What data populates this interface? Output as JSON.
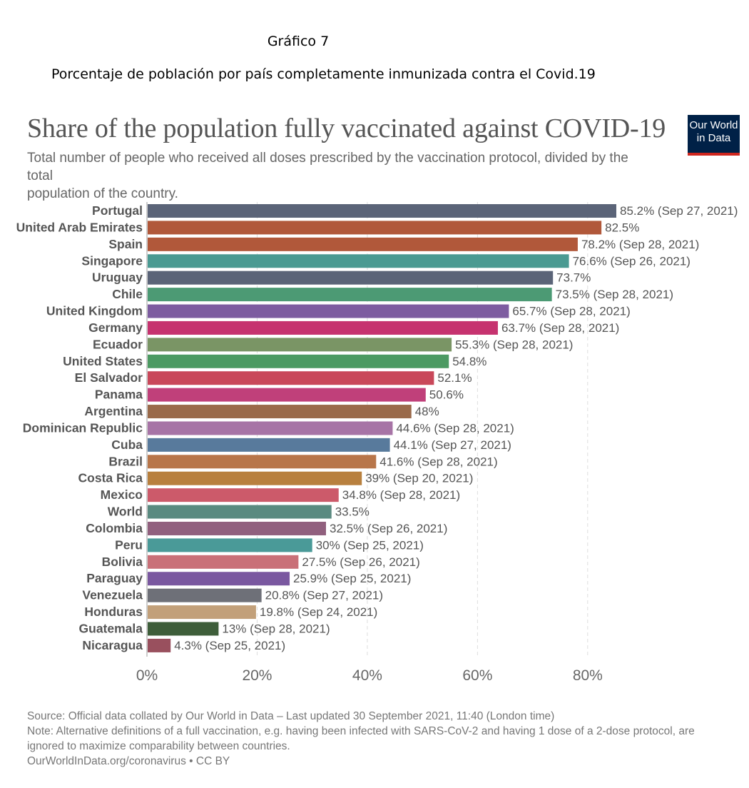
{
  "caption": {
    "number": "Gráfico 7",
    "title": "Porcentaje de población por país completamente inmunizada contra el Covid.19"
  },
  "logo": {
    "line1": "Our World",
    "line2": "in Data",
    "bg_color": "#002147",
    "accent_color": "#ce261e"
  },
  "footer": {
    "source": "Source: Official data collated by Our World in Data – Last updated 30 September 2021, 11:40 (London time)",
    "note_line1": "Note: Alternative definitions of a full vaccination, e.g. having been infected with SARS-CoV-2 and having 1 dose of a 2-dose protocol, are",
    "note_line2": "ignored to maximize comparability between countries.",
    "credit": "OurWorldInData.org/coronavirus • CC BY"
  },
  "chart_data": {
    "type": "bar",
    "orientation": "horizontal",
    "title": "Share of the population fully vaccinated against COVID-19",
    "subtitle_line1": "Total number of people who received all doses prescribed by the vaccination protocol, divided by the total",
    "subtitle_line2": "population of the country.",
    "xlim": [
      0,
      85.2
    ],
    "xticks": [
      "0%",
      "20%",
      "40%",
      "60%",
      "80%"
    ],
    "xtick_values": [
      0,
      20,
      40,
      60,
      80
    ],
    "grid": true,
    "bars": [
      {
        "name": "Portugal",
        "value": 85.2,
        "label": "85.2% (Sep 27, 2021)",
        "color": "#5b6478"
      },
      {
        "name": "United Arab Emirates",
        "value": 82.5,
        "label": "82.5%",
        "color": "#b1583a"
      },
      {
        "name": "Spain",
        "value": 78.2,
        "label": "78.2% (Sep 28, 2021)",
        "color": "#b1583a"
      },
      {
        "name": "Singapore",
        "value": 76.6,
        "label": "76.6% (Sep 26, 2021)",
        "color": "#4a9a92"
      },
      {
        "name": "Uruguay",
        "value": 73.7,
        "label": "73.7%",
        "color": "#5b6478"
      },
      {
        "name": "Chile",
        "value": 73.5,
        "label": "73.5% (Sep 28, 2021)",
        "color": "#4c9a74"
      },
      {
        "name": "United Kingdom",
        "value": 65.7,
        "label": "65.7% (Sep 28, 2021)",
        "color": "#7d5ca0"
      },
      {
        "name": "Germany",
        "value": 63.7,
        "label": "63.7% (Sep 28, 2021)",
        "color": "#c6336f"
      },
      {
        "name": "Ecuador",
        "value": 55.3,
        "label": "55.3% (Sep 28, 2021)",
        "color": "#7a9565"
      },
      {
        "name": "United States",
        "value": 54.8,
        "label": "54.8%",
        "color": "#4c9a62"
      },
      {
        "name": "El Salvador",
        "value": 52.1,
        "label": "52.1%",
        "color": "#c9485a"
      },
      {
        "name": "Panama",
        "value": 50.6,
        "label": "50.6%",
        "color": "#c0407a"
      },
      {
        "name": "Argentina",
        "value": 48,
        "label": "48%",
        "color": "#9a6a4a"
      },
      {
        "name": "Dominican Republic",
        "value": 44.6,
        "label": "44.6% (Sep 28, 2021)",
        "color": "#a774a6"
      },
      {
        "name": "Cuba",
        "value": 44.1,
        "label": "44.1% (Sep 27, 2021)",
        "color": "#587a9c"
      },
      {
        "name": "Brazil",
        "value": 41.6,
        "label": "41.6% (Sep 28, 2021)",
        "color": "#b8764a"
      },
      {
        "name": "Costa Rica",
        "value": 39,
        "label": "39% (Sep 20, 2021)",
        "color": "#b8803e"
      },
      {
        "name": "Mexico",
        "value": 34.8,
        "label": "34.8% (Sep 28, 2021)",
        "color": "#cc5a6a"
      },
      {
        "name": "World",
        "value": 33.5,
        "label": "33.5%",
        "color": "#5a8a80"
      },
      {
        "name": "Colombia",
        "value": 32.5,
        "label": "32.5% (Sep 26, 2021)",
        "color": "#91607e"
      },
      {
        "name": "Peru",
        "value": 30,
        "label": "30% (Sep 25, 2021)",
        "color": "#4a9a98"
      },
      {
        "name": "Bolivia",
        "value": 27.5,
        "label": "27.5% (Sep 26, 2021)",
        "color": "#c97078"
      },
      {
        "name": "Paraguay",
        "value": 25.9,
        "label": "25.9% (Sep 25, 2021)",
        "color": "#7a58a0"
      },
      {
        "name": "Venezuela",
        "value": 20.8,
        "label": "20.8% (Sep 27, 2021)",
        "color": "#6e7078"
      },
      {
        "name": "Honduras",
        "value": 19.8,
        "label": "19.8% (Sep 24, 2021)",
        "color": "#c2a07a"
      },
      {
        "name": "Guatemala",
        "value": 13,
        "label": "13% (Sep 28, 2021)",
        "color": "#3e5e3a"
      },
      {
        "name": "Nicaragua",
        "value": 4.3,
        "label": "4.3% (Sep 25, 2021)",
        "color": "#99505e"
      }
    ]
  }
}
